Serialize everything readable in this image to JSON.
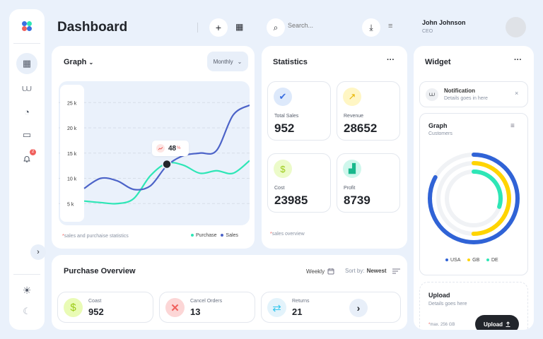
{
  "header": {
    "title": "Dashboard",
    "search_placeholder": "Search...",
    "user_name": "John Johnson",
    "user_role": "CEO"
  },
  "sidebar": {
    "notification_count": "2"
  },
  "graph_card": {
    "title": "Graph",
    "period": "Monthly",
    "footnote": "sales and purchaise statistics",
    "tooltip_value": "48",
    "tooltip_unit": "%"
  },
  "chart_data": {
    "type": "line",
    "x": [
      0,
      10,
      20,
      30,
      40,
      50,
      60,
      70,
      80,
      90,
      100
    ],
    "ylim": [
      0,
      27
    ],
    "yticks": [
      "25 k",
      "20 k",
      "15 k",
      "10 k",
      "5 k"
    ],
    "ytick_values": [
      25,
      20,
      15,
      10,
      5
    ],
    "series": [
      {
        "name": "Purchase",
        "color": "#2ee6b6",
        "values": [
          5.5,
          5.2,
          5,
          6,
          10.5,
          13,
          12.6,
          11,
          11.5,
          11,
          13.5
        ]
      },
      {
        "name": "Sales",
        "color": "#4c63c8",
        "values": [
          8,
          10,
          9.5,
          7.8,
          8.5,
          12.5,
          14.5,
          15,
          15.5,
          22.5,
          24.5
        ]
      }
    ],
    "highlight": {
      "x": 50,
      "y": 12.8
    }
  },
  "statistics": {
    "title": "Statistics",
    "footnote": "sales overview",
    "items": [
      {
        "label": "Total Sales",
        "value": "952",
        "icon": "check-badge-icon",
        "color": "#dde9fb",
        "fg": "#3b6fe0"
      },
      {
        "label": "Revenue",
        "value": "28652",
        "icon": "trend-up-icon",
        "color": "#fff6c4",
        "fg": "#e8b400"
      },
      {
        "label": "Cost",
        "value": "23985",
        "icon": "money-bag-icon",
        "color": "#ecfbc9",
        "fg": "#9ccb18"
      },
      {
        "label": "Profit",
        "value": "8739",
        "icon": "bar-chart-icon",
        "color": "#cff7ec",
        "fg": "#18b88c"
      }
    ]
  },
  "purchase": {
    "title": "Purchase Overview",
    "period": "Weekly",
    "sort_label": "Sort by:",
    "sort_value": "Newest",
    "items": [
      {
        "label": "Coast",
        "value": "952"
      },
      {
        "label": "Cancel Orders",
        "value": "13"
      },
      {
        "label": "Returns",
        "value": "21"
      }
    ]
  },
  "widget": {
    "title": "Widget",
    "notification_title": "Notification",
    "notification_details": "Details goes in here",
    "graph_title": "Graph",
    "graph_subtitle": "Customers",
    "donut": [
      {
        "name": "USA",
        "color": "#3063d6",
        "fraction": 0.83
      },
      {
        "name": "GB",
        "color": "#ffd400",
        "fraction": 0.5
      },
      {
        "name": "DE",
        "color": "#2ee6b6",
        "fraction": 0.3
      }
    ],
    "upload_title": "Upload",
    "upload_details": "Details goes here",
    "upload_limit": "max. 256 GB",
    "upload_button": "Upload"
  }
}
